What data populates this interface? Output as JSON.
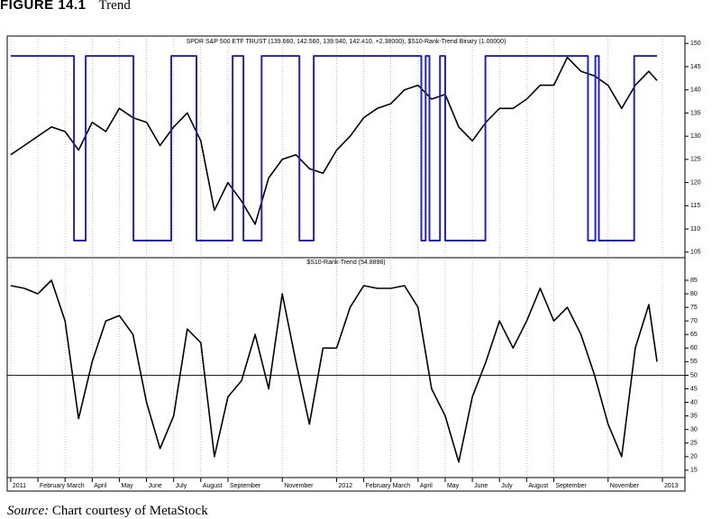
{
  "figure": {
    "label": "FIGURE 14.1",
    "title": "Trend"
  },
  "source": {
    "label": "Source:",
    "text": "Chart courtesy of MetaStock"
  },
  "chart_data": [
    {
      "type": "line",
      "title": "SPDR S&P 500 ETF TRUST (139.660, 142.560, 139.540, 142.410, +2.38000), $S10-Rank-Trend Binary (1.00000)",
      "x": [
        0,
        0.5,
        1,
        1.5,
        2,
        2.5,
        3,
        3.5,
        4,
        4.5,
        5,
        5.5,
        6,
        6.5,
        7,
        7.5,
        8,
        8.5,
        9,
        9.5,
        10,
        10.5,
        11,
        11.5,
        12,
        12.5,
        13,
        13.5,
        14,
        14.5,
        15,
        15.5,
        16,
        16.5,
        17,
        17.5,
        18,
        18.5,
        19,
        19.5,
        20,
        20.5,
        21,
        21.5,
        22,
        22.5,
        23,
        23.5,
        23.8
      ],
      "xlim": [
        -0.13,
        24.83
      ],
      "ylim": [
        103.8,
        151.6
      ],
      "yticks": [
        105,
        110,
        115,
        120,
        125,
        130,
        135,
        140,
        145,
        150
      ],
      "y2lim": [
        -0.093,
        1.108
      ],
      "series": [
        {
          "color": "#000000",
          "values": [
            126,
            128,
            130,
            132,
            131,
            127,
            133,
            131,
            136,
            134,
            133,
            128,
            132,
            135,
            129,
            114,
            120,
            116,
            111,
            121,
            125,
            126,
            123,
            122,
            127,
            130,
            134,
            136,
            137,
            140,
            141,
            138,
            139,
            132,
            129,
            133,
            136,
            136,
            138,
            141,
            141,
            147,
            144,
            143,
            141,
            136,
            141,
            144,
            142
          ]
        },
        {
          "color": "#2424b4",
          "axis": "y2",
          "x": [
            0,
            2.33,
            2.33,
            2.76,
            2.76,
            4.52,
            4.52,
            5.91,
            5.91,
            6.84,
            6.84,
            8.17,
            8.17,
            8.57,
            8.57,
            9.24,
            9.24,
            10.63,
            10.63,
            11.16,
            11.16,
            15.12,
            15.12,
            15.28,
            15.28,
            15.42,
            15.42,
            15.81,
            15.81,
            16.0,
            16.0,
            17.48,
            17.48,
            21.26,
            21.26,
            21.53,
            21.53,
            21.66,
            21.66,
            22.96,
            22.96,
            23.8
          ],
          "values": [
            1,
            1,
            0,
            0,
            1,
            1,
            0,
            0,
            1,
            1,
            0,
            0,
            1,
            1,
            0,
            0,
            1,
            1,
            0,
            0,
            1,
            1,
            0,
            0,
            1,
            1,
            0,
            0,
            1,
            1,
            0,
            0,
            1,
            1,
            0,
            0,
            1,
            1,
            0,
            0,
            1,
            1
          ]
        }
      ]
    },
    {
      "type": "line",
      "title": "$S10-Rank-Trend (54.8898)",
      "x": [
        0,
        0.5,
        1,
        1.5,
        2,
        2.5,
        3,
        3.5,
        4,
        4.5,
        5,
        5.5,
        6,
        6.5,
        7,
        7.5,
        8,
        8.5,
        9,
        9.5,
        10,
        10.5,
        11,
        11.5,
        12,
        12.5,
        13,
        13.5,
        14,
        14.5,
        15,
        15.5,
        16,
        16.5,
        17,
        17.5,
        18,
        18.5,
        19,
        19.5,
        20,
        20.5,
        21,
        21.5,
        22,
        22.5,
        23,
        23.5,
        23.8
      ],
      "xlim": [
        -0.13,
        24.83
      ],
      "xticks": [
        {
          "value": 0,
          "label": "2011"
        },
        {
          "value": 1,
          "label": "February"
        },
        {
          "value": 2,
          "label": "March"
        },
        {
          "value": 3,
          "label": "April"
        },
        {
          "value": 4,
          "label": "May"
        },
        {
          "value": 5,
          "label": "June"
        },
        {
          "value": 6,
          "label": "July"
        },
        {
          "value": 7,
          "label": "August"
        },
        {
          "value": 8,
          "label": "September"
        },
        {
          "value": 10,
          "label": "November"
        },
        {
          "value": 12,
          "label": "2012"
        },
        {
          "value": 13,
          "label": "February"
        },
        {
          "value": 14,
          "label": "March"
        },
        {
          "value": 15,
          "label": "April"
        },
        {
          "value": 16,
          "label": "May"
        },
        {
          "value": 17,
          "label": "June"
        },
        {
          "value": 18,
          "label": "July"
        },
        {
          "value": 19,
          "label": "August"
        },
        {
          "value": 20,
          "label": "September"
        },
        {
          "value": 22,
          "label": "November"
        },
        {
          "value": 24,
          "label": "2013"
        }
      ],
      "ylim": [
        12.3,
        93.3
      ],
      "yticks": [
        15,
        20,
        25,
        30,
        35,
        40,
        45,
        50,
        55,
        60,
        65,
        70,
        75,
        80,
        85
      ],
      "reference_line": 50,
      "series": [
        {
          "color": "#000000",
          "values": [
            83,
            82,
            80,
            85,
            70,
            34,
            55,
            70,
            72,
            65,
            40,
            23,
            35,
            67,
            62,
            20,
            42,
            48,
            65,
            45,
            80,
            55,
            32,
            60,
            60,
            75,
            83,
            82,
            82,
            83,
            75,
            45,
            35,
            18,
            42,
            55,
            70,
            60,
            70,
            82,
            70,
            75,
            65,
            50,
            32,
            20,
            60,
            76,
            55
          ]
        }
      ]
    }
  ]
}
